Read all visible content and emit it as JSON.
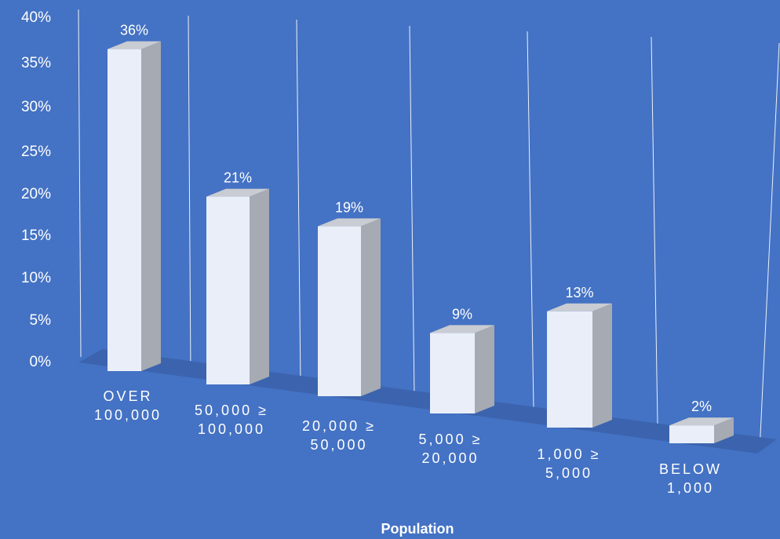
{
  "chart_data": {
    "type": "bar",
    "xlabel": "Population",
    "ylabel": "",
    "ylim": [
      0,
      40
    ],
    "yticks": [
      "0%",
      "5%",
      "10%",
      "15%",
      "20%",
      "25%",
      "30%",
      "35%",
      "40%"
    ],
    "categories": [
      [
        "OVER",
        "100,000"
      ],
      [
        "50,000 ≥",
        "100,000"
      ],
      [
        "20,000 ≥",
        "50,000"
      ],
      [
        "5,000 ≥",
        "20,000"
      ],
      [
        "1,000 ≥",
        "5,000"
      ],
      [
        "BELOW",
        "1,000"
      ]
    ],
    "values": [
      36,
      21,
      19,
      9,
      13,
      2
    ],
    "data_labels": [
      "36%",
      "21%",
      "19%",
      "9%",
      "13%",
      "2%"
    ],
    "grid": true,
    "colors": {
      "background": "#4472C4",
      "bar_front": "#E9EEF8",
      "bar_side": "#A6AAB2",
      "bar_top": "#C9CCD2",
      "floor": "#3C64AE",
      "gridline": "#FFFFFF"
    }
  }
}
